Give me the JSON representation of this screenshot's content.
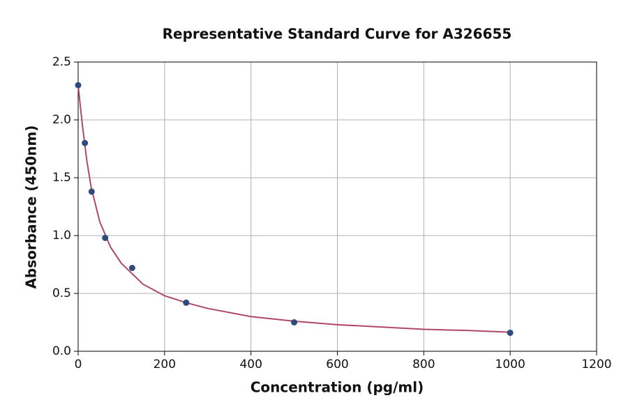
{
  "chart_data": {
    "type": "scatter",
    "title": "Representative Standard Curve for A326655",
    "xlabel": "Concentration (pg/ml)",
    "ylabel": "Absorbance (450nm)",
    "series": [
      {
        "color": "#2f4b7c",
        "x": [
          0,
          15.6,
          31.25,
          62.5,
          125,
          250,
          500,
          1000
        ],
        "values": [
          2.3,
          1.8,
          1.38,
          0.98,
          0.72,
          0.42,
          0.25,
          0.16
        ]
      },
      {
        "type": "line",
        "color": "#b0476a",
        "x": [
          0,
          5,
          10,
          20,
          30,
          50,
          75,
          100,
          150,
          200,
          250,
          300,
          400,
          500,
          600,
          700,
          800,
          900,
          1000
        ],
        "values": [
          2.3,
          2.12,
          1.95,
          1.65,
          1.42,
          1.12,
          0.9,
          0.76,
          0.58,
          0.48,
          0.42,
          0.37,
          0.3,
          0.26,
          0.23,
          0.21,
          0.19,
          0.18,
          0.165
        ]
      }
    ],
    "xlim": [
      0,
      1200
    ],
    "xticks": [
      0,
      200,
      400,
      600,
      800,
      1000,
      1200
    ],
    "ylim": [
      0,
      2.5
    ],
    "yticks": [
      {
        "value": 0,
        "label": "0.0"
      },
      0.5,
      {
        "value": 1,
        "label": "1.0"
      },
      1.5,
      {
        "value": 2,
        "label": "2.0"
      },
      2.5
    ],
    "grid": true
  }
}
